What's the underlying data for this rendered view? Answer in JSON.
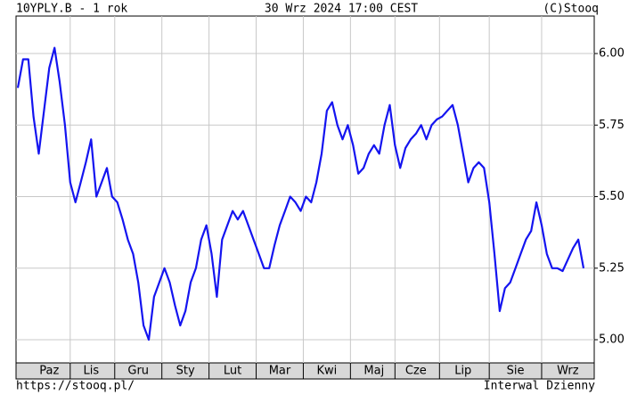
{
  "chart_data": {
    "type": "line",
    "title": "10YPLY.B - 1 rok",
    "subtitle": "30 Wrz 2024 17:00 CEST",
    "source": "(C)Stooq",
    "footer_left": "https://stooq.pl/",
    "footer_right": "Interwal Dzienny",
    "color": "#1414f0",
    "grid": true,
    "ylim": [
      4.919,
      6.131
    ],
    "yticks": [
      {
        "value": 5,
        "label": "5.00"
      },
      5.25,
      {
        "value": 5.5,
        "label": "5.50"
      },
      5.75,
      {
        "value": 6,
        "label": "6.00"
      }
    ],
    "categories": [
      null,
      null,
      null,
      null,
      null,
      null,
      "Paz",
      null,
      null,
      null,
      null,
      null,
      null,
      null,
      "Lis",
      null,
      null,
      null,
      null,
      null,
      null,
      null,
      null,
      "Gru",
      null,
      null,
      null,
      null,
      null,
      null,
      null,
      null,
      "Sty",
      null,
      null,
      null,
      null,
      null,
      null,
      null,
      null,
      "Lut",
      null,
      null,
      null,
      null,
      null,
      null,
      null,
      null,
      "Mar",
      null,
      null,
      null,
      null,
      null,
      null,
      null,
      null,
      "Kwi",
      null,
      null,
      null,
      null,
      null,
      null,
      null,
      null,
      "Maj",
      null,
      null,
      null,
      null,
      null,
      null,
      null,
      "Cze",
      null,
      null,
      null,
      null,
      null,
      null,
      null,
      null,
      "Lip",
      null,
      null,
      null,
      null,
      null,
      null,
      null,
      null,
      null,
      "Sie",
      null,
      null,
      null,
      null,
      null,
      null,
      null,
      null,
      null,
      "Wrz",
      null,
      null,
      null
    ],
    "values": [
      5.88,
      5.98,
      5.98,
      5.78,
      5.65,
      5.8,
      5.95,
      6.02,
      5.9,
      5.75,
      5.55,
      5.48,
      5.55,
      5.62,
      5.7,
      5.5,
      5.55,
      5.6,
      5.5,
      5.48,
      5.42,
      5.35,
      5.3,
      5.2,
      5.05,
      5.0,
      5.15,
      5.2,
      5.25,
      5.2,
      5.12,
      5.05,
      5.1,
      5.2,
      5.25,
      5.35,
      5.4,
      5.3,
      5.15,
      5.35,
      5.4,
      5.45,
      5.42,
      5.45,
      5.4,
      5.35,
      5.3,
      5.25,
      5.25,
      5.33,
      5.4,
      5.45,
      5.5,
      5.48,
      5.45,
      5.5,
      5.48,
      5.55,
      5.65,
      5.8,
      5.83,
      5.75,
      5.7,
      5.75,
      5.68,
      5.58,
      5.6,
      5.65,
      5.68,
      5.65,
      5.75,
      5.82,
      5.68,
      5.6,
      5.67,
      5.7,
      5.72,
      5.75,
      5.7,
      5.75,
      5.77,
      5.78,
      5.8,
      5.82,
      5.75,
      5.65,
      5.55,
      5.6,
      5.62,
      5.6,
      5.48,
      5.3,
      5.1,
      5.18,
      5.2,
      5.25,
      5.3,
      5.35,
      5.38,
      5.48,
      5.4,
      5.3,
      5.25,
      5.25,
      5.24,
      5.28,
      5.32,
      5.35,
      5.25
    ]
  }
}
